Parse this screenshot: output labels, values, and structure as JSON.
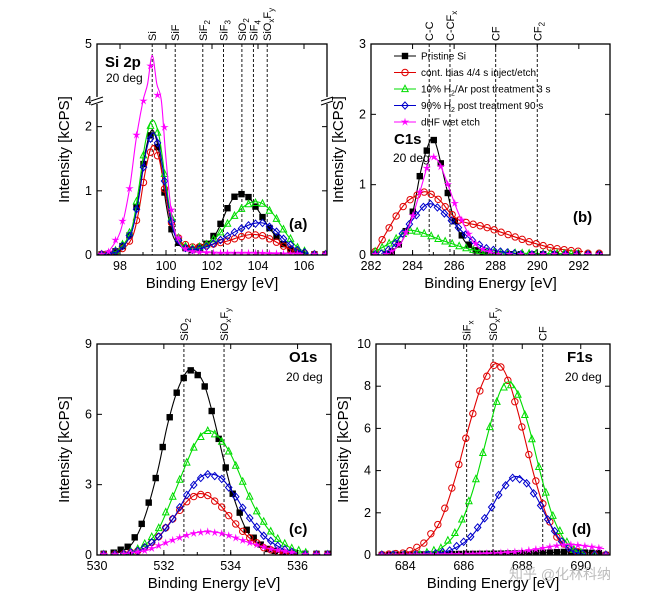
{
  "chart_data": [
    {
      "id": "a",
      "type": "line",
      "panel_label": "(a)",
      "tag": "Si 2p",
      "subtitle": "20 deg",
      "xlabel": "Binding Energy [eV]",
      "ylabel": "Intensity [kCPS]",
      "xlim": [
        97,
        107
      ],
      "xticks": [
        98,
        100,
        102,
        104,
        106
      ],
      "ylim": [
        0,
        5
      ],
      "y_break": [
        2.4,
        4.0
      ],
      "yticks": [
        0,
        1,
        2,
        4,
        5
      ],
      "ref_lines": [
        {
          "x": 99.4,
          "label": "Si"
        },
        {
          "x": 100.4,
          "label": "SiF"
        },
        {
          "x": 101.6,
          "label": "SiF2"
        },
        {
          "x": 102.5,
          "label": "SiF3"
        },
        {
          "x": 103.3,
          "label": "SiO2"
        },
        {
          "x": 103.8,
          "label": "SiF4"
        },
        {
          "x": 104.4,
          "label": "SiOxFy"
        }
      ],
      "series": [
        {
          "name": "Pristine Si",
          "x": [
            97.5,
            98,
            98.5,
            98.8,
            99.1,
            99.4,
            99.7,
            100,
            100.3,
            100.7,
            101.2,
            101.7,
            102.2,
            102.7,
            103.0,
            103.3,
            103.6,
            104.0,
            104.5,
            105,
            105.5,
            106
          ],
          "y": [
            0.02,
            0.08,
            0.35,
            0.9,
            1.6,
            1.95,
            1.6,
            0.8,
            0.3,
            0.12,
            0.08,
            0.15,
            0.35,
            0.75,
            0.92,
            0.95,
            0.9,
            0.7,
            0.42,
            0.2,
            0.06,
            0.02
          ]
        },
        {
          "name": "cont. bias 4/4 s inject/etch",
          "x": [
            97.5,
            98,
            98.5,
            98.8,
            99.1,
            99.4,
            99.7,
            100,
            100.3,
            100.7,
            101.2,
            101.7,
            102.2,
            102.7,
            103.2,
            103.7,
            104.2,
            104.7,
            105.2,
            105.7,
            106.2
          ],
          "y": [
            0.02,
            0.06,
            0.25,
            0.65,
            1.3,
            1.7,
            1.5,
            0.9,
            0.4,
            0.18,
            0.12,
            0.14,
            0.18,
            0.22,
            0.28,
            0.32,
            0.3,
            0.22,
            0.12,
            0.05,
            0.02
          ]
        },
        {
          "name": "10% H2/Ar post treatment 3 s",
          "x": [
            97.5,
            98,
            98.5,
            98.8,
            99.1,
            99.4,
            99.7,
            100,
            100.3,
            100.7,
            101.2,
            101.7,
            102.2,
            102.7,
            103.2,
            103.7,
            104.2,
            104.7,
            105.2,
            105.7,
            106.2
          ],
          "y": [
            0.02,
            0.1,
            0.4,
            1.0,
            1.75,
            2.1,
            1.85,
            1.1,
            0.45,
            0.15,
            0.1,
            0.15,
            0.28,
            0.5,
            0.7,
            0.82,
            0.8,
            0.62,
            0.35,
            0.12,
            0.03
          ]
        },
        {
          "name": "90% H2 post treatment 90 s",
          "x": [
            97.5,
            98,
            98.5,
            98.8,
            99.1,
            99.4,
            99.7,
            100,
            100.3,
            100.7,
            101.2,
            101.7,
            102.2,
            102.7,
            103.2,
            103.7,
            104.2,
            104.7,
            105.2,
            105.7,
            106.2
          ],
          "y": [
            0.02,
            0.08,
            0.35,
            0.85,
            1.55,
            1.9,
            1.7,
            1.0,
            0.4,
            0.12,
            0.08,
            0.12,
            0.2,
            0.3,
            0.4,
            0.48,
            0.5,
            0.4,
            0.22,
            0.08,
            0.02
          ]
        },
        {
          "name": "dHF wet etch",
          "x": [
            97.5,
            98,
            98.4,
            98.7,
            99.0,
            99.2,
            99.4,
            99.6,
            99.8,
            100,
            100.3,
            100.7,
            101.2,
            101.7,
            102.2,
            103,
            104,
            105,
            106
          ],
          "y": [
            0.05,
            0.35,
            1.0,
            1.8,
            3.0,
            4.3,
            4.8,
            4.3,
            3.0,
            1.5,
            0.5,
            0.12,
            0.05,
            0.04,
            0.03,
            0.03,
            0.03,
            0.02,
            0.02
          ]
        }
      ]
    },
    {
      "id": "b",
      "type": "line",
      "panel_label": "(b)",
      "tag": "C1s",
      "subtitle": "20 deg",
      "xlabel": "Binding Energy [eV]",
      "ylabel": "Intensity [kCPS]",
      "xlim": [
        282,
        293.5
      ],
      "xticks": [
        282,
        284,
        286,
        288,
        290,
        292
      ],
      "ylim": [
        0,
        3
      ],
      "yticks": [
        0,
        1,
        2,
        3
      ],
      "ref_lines": [
        {
          "x": 284.8,
          "label": "C-C"
        },
        {
          "x": 285.8,
          "label": "C-CFx"
        },
        {
          "x": 288.0,
          "label": "CF"
        },
        {
          "x": 290.0,
          "label": "CF2"
        }
      ],
      "legend": [
        {
          "name": "Pristine Si",
          "color": "#000000",
          "marker": "square"
        },
        {
          "name": "cont. bias 4/4 s inject/etch",
          "color": "#e00000",
          "marker": "circle"
        },
        {
          "name": "10% H2/Ar post treatment 3 s",
          "color": "#00dd00",
          "marker": "triangle"
        },
        {
          "name": "90% H2 post treatment 90 s",
          "color": "#0000cc",
          "marker": "diamond"
        },
        {
          "name": "dHF wet etch",
          "color": "#ff00ff",
          "marker": "star"
        }
      ],
      "series": [
        {
          "name": "Pristine Si",
          "x": [
            283,
            283.5,
            284,
            284.4,
            284.8,
            285.0,
            285.2,
            285.6,
            286,
            286.5,
            287,
            287.5,
            288
          ],
          "y": [
            0.05,
            0.2,
            0.6,
            1.2,
            1.6,
            1.65,
            1.5,
            1.0,
            0.5,
            0.2,
            0.07,
            0.03,
            0.02
          ]
        },
        {
          "name": "cont. bias 4/4 s inject/etch",
          "x": [
            282.2,
            282.7,
            283.2,
            283.7,
            284.2,
            284.6,
            285.0,
            285.4,
            285.8,
            286.2,
            286.7,
            287.2,
            287.7,
            288.2,
            288.7,
            289.2,
            289.7,
            290.2,
            290.7,
            291.2,
            291.7,
            292.2
          ],
          "y": [
            0.05,
            0.3,
            0.55,
            0.75,
            0.85,
            0.9,
            0.85,
            0.75,
            0.6,
            0.5,
            0.45,
            0.42,
            0.38,
            0.33,
            0.28,
            0.23,
            0.18,
            0.14,
            0.1,
            0.08,
            0.06,
            0.05
          ]
        },
        {
          "name": "10% H2/Ar post treatment 3 s",
          "x": [
            282.2,
            282.8,
            283.3,
            283.8,
            284.3,
            284.8,
            285.3,
            285.8,
            286.3,
            286.8,
            287.5,
            288.5,
            290,
            292
          ],
          "y": [
            0.05,
            0.15,
            0.25,
            0.35,
            0.33,
            0.28,
            0.22,
            0.17,
            0.12,
            0.08,
            0.05,
            0.03,
            0.02,
            0.02
          ]
        },
        {
          "name": "90% H2 post treatment 90 s",
          "x": [
            282.5,
            283,
            283.5,
            284,
            284.5,
            284.8,
            285.1,
            285.5,
            286,
            286.5,
            287,
            287.5,
            288.2,
            289
          ],
          "y": [
            0.02,
            0.1,
            0.3,
            0.5,
            0.68,
            0.73,
            0.7,
            0.6,
            0.45,
            0.3,
            0.18,
            0.1,
            0.05,
            0.02
          ]
        },
        {
          "name": "dHF wet etch",
          "x": [
            283,
            283.5,
            284,
            284.5,
            284.8,
            285.0,
            285.3,
            285.7,
            286.2,
            286.7,
            287.2,
            288
          ],
          "y": [
            0.05,
            0.2,
            0.55,
            1.05,
            1.35,
            1.4,
            1.3,
            1.0,
            0.6,
            0.3,
            0.1,
            0.02
          ]
        }
      ]
    },
    {
      "id": "c",
      "type": "line",
      "panel_label": "(c)",
      "tag": "O1s",
      "subtitle": "20 deg",
      "xlabel": "Binding Energy [eV]",
      "ylabel": "Intensity [kCPS]",
      "xlim": [
        530,
        537
      ],
      "xticks": [
        530,
        532,
        534,
        536
      ],
      "ylim": [
        0,
        9
      ],
      "yticks": [
        0,
        3,
        6,
        9
      ],
      "ref_lines": [
        {
          "x": 532.6,
          "label": "SiO2"
        },
        {
          "x": 533.8,
          "label": "SiOxFy"
        }
      ],
      "series": [
        {
          "name": "Pristine Si",
          "x": [
            530.5,
            531,
            531.4,
            531.8,
            532.1,
            532.4,
            532.7,
            532.9,
            533.2,
            533.5,
            533.8,
            534.1,
            534.5,
            535,
            535.5
          ],
          "y": [
            0.1,
            0.4,
            1.5,
            3.5,
            5.5,
            7.0,
            7.85,
            7.9,
            7.3,
            5.8,
            4.0,
            2.4,
            1.0,
            0.3,
            0.1
          ]
        },
        {
          "name": "cont. bias 4/4 s inject/etch",
          "x": [
            530.8,
            531.3,
            531.8,
            532.3,
            532.7,
            533.0,
            533.3,
            533.7,
            534.1,
            534.5,
            535,
            535.5,
            536
          ],
          "y": [
            0.05,
            0.2,
            0.7,
            1.6,
            2.3,
            2.6,
            2.55,
            2.1,
            1.4,
            0.8,
            0.3,
            0.1,
            0.05
          ]
        },
        {
          "name": "10% H2/Ar post treatment 3 s",
          "x": [
            530.8,
            531.3,
            531.8,
            532.3,
            532.7,
            533.0,
            533.3,
            533.6,
            534.0,
            534.4,
            534.8,
            535.3,
            535.8,
            536.3
          ],
          "y": [
            0.05,
            0.3,
            1.0,
            2.6,
            4.0,
            4.9,
            5.3,
            5.1,
            4.3,
            3.0,
            1.8,
            0.8,
            0.3,
            0.08
          ]
        },
        {
          "name": "90% H2 post treatment 90 s",
          "x": [
            530.8,
            531.3,
            531.8,
            532.3,
            532.7,
            533.0,
            533.3,
            533.7,
            534.1,
            534.5,
            535,
            535.5,
            536
          ],
          "y": [
            0.05,
            0.2,
            0.7,
            1.6,
            2.6,
            3.2,
            3.45,
            3.3,
            2.6,
            1.7,
            0.8,
            0.3,
            0.05
          ]
        },
        {
          "name": "dHF wet etch",
          "x": [
            530.8,
            531.5,
            532.2,
            532.8,
            533.3,
            533.8,
            534.4,
            535.2,
            536
          ],
          "y": [
            0.05,
            0.2,
            0.6,
            0.9,
            1.0,
            0.9,
            0.6,
            0.25,
            0.08
          ]
        }
      ]
    },
    {
      "id": "d",
      "type": "line",
      "panel_label": "(d)",
      "tag": "F1s",
      "subtitle": "20 deg",
      "xlabel": "Binding Energy [eV]",
      "ylabel": "Intensity [kCPS]",
      "xlim": [
        683,
        691
      ],
      "xticks": [
        684,
        686,
        688,
        690
      ],
      "ylim": [
        0,
        10
      ],
      "yticks": [
        0,
        2,
        4,
        6,
        8,
        10
      ],
      "ref_lines": [
        {
          "x": 686.1,
          "label": "SiFx"
        },
        {
          "x": 687.0,
          "label": "SiOxFy"
        },
        {
          "x": 688.7,
          "label": "CF"
        }
      ],
      "series": [
        {
          "name": "Pristine Si",
          "x": [
            683.2,
            684,
            685,
            686,
            687,
            688,
            688.5,
            689,
            689.5,
            690,
            690.8
          ],
          "y": [
            0,
            0.02,
            0.03,
            0.05,
            0.06,
            0.08,
            0.1,
            0.12,
            0.15,
            0.12,
            0.08
          ]
        },
        {
          "name": "cont. bias 4/4 s inject/etch",
          "x": [
            683.2,
            684,
            684.6,
            685.2,
            685.7,
            686.2,
            686.6,
            687.0,
            687.3,
            687.6,
            688.0,
            688.4,
            688.8,
            689.2,
            689.6,
            690.0
          ],
          "y": [
            0.02,
            0.1,
            0.5,
            1.6,
            3.6,
            6.2,
            8.0,
            9.0,
            8.9,
            8.0,
            6.0,
            3.8,
            2.0,
            0.8,
            0.3,
            0.1
          ]
        },
        {
          "name": "10% H2/Ar post treatment 3 s",
          "x": [
            684.5,
            685.2,
            685.8,
            686.3,
            686.8,
            687.2,
            687.5,
            687.8,
            688.2,
            688.6,
            689.0,
            689.4,
            689.8,
            690.2
          ],
          "y": [
            0.02,
            0.3,
            1.2,
            3.0,
            5.6,
            7.6,
            8.2,
            7.8,
            6.2,
            4.0,
            2.0,
            0.8,
            0.2,
            0.05
          ]
        },
        {
          "name": "90% H2 post treatment 90 s",
          "x": [
            684.8,
            685.5,
            686.2,
            686.8,
            687.3,
            687.7,
            688.1,
            688.5,
            688.9,
            689.3,
            689.7,
            690.1
          ],
          "y": [
            0.02,
            0.2,
            0.8,
            1.9,
            3.1,
            3.7,
            3.5,
            2.7,
            1.6,
            0.7,
            0.2,
            0.05
          ]
        },
        {
          "name": "dHF wet etch",
          "x": [
            683.2,
            684,
            685,
            686,
            687,
            687.8,
            688.4,
            689,
            689.5,
            690,
            690.8
          ],
          "y": [
            0,
            0.01,
            0.02,
            0.04,
            0.08,
            0.15,
            0.25,
            0.4,
            0.5,
            0.45,
            0.3
          ]
        }
      ]
    }
  ],
  "style": {
    "series_colors": [
      "#000000",
      "#e00000",
      "#00dd00",
      "#0000cc",
      "#ff00ff"
    ],
    "series_markers": [
      "square",
      "circle",
      "triangle",
      "diamond",
      "star"
    ],
    "ref_line_color": "#000000"
  },
  "watermark": "知乎 @化林科纳"
}
